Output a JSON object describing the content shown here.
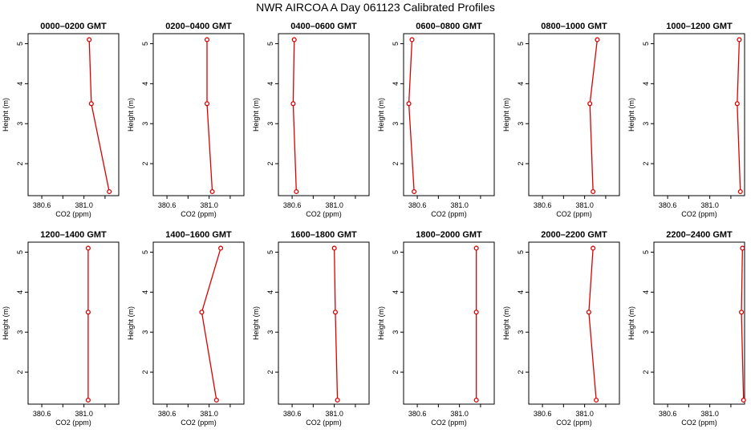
{
  "title": "NWR AIRCOA A  Day 061123  Calibrated Profiles",
  "chart_data": {
    "type": "line",
    "xlabel": "CO2 (ppm)",
    "ylabel": "Height (m)",
    "xlim": [
      380.47,
      381.33
    ],
    "ylim": [
      1.2,
      5.25
    ],
    "xticks": [
      380.6,
      381.0
    ],
    "xtick_labels": [
      "380.6",
      "381.0"
    ],
    "yticks": [
      2,
      3,
      4,
      5
    ],
    "ytick_labels": [
      "2",
      "3",
      "4",
      "5"
    ],
    "heights": [
      5.1,
      3.5,
      1.3
    ],
    "line_color": "#dd0000",
    "panels": [
      {
        "title": "0000–0200 GMT",
        "co2": [
          381.05,
          381.07,
          381.24
        ]
      },
      {
        "title": "0200–0400 GMT",
        "co2": [
          380.98,
          380.98,
          381.03
        ]
      },
      {
        "title": "0400–0600 GMT",
        "co2": [
          380.62,
          380.61,
          380.64
        ]
      },
      {
        "title": "0600–0800 GMT",
        "co2": [
          380.55,
          380.52,
          380.57
        ]
      },
      {
        "title": "0800–1000 GMT",
        "co2": [
          381.12,
          381.05,
          381.08
        ]
      },
      {
        "title": "1000–1200 GMT",
        "co2": [
          381.28,
          381.26,
          381.29
        ]
      },
      {
        "title": "1200–1400 GMT",
        "co2": [
          381.04,
          381.04,
          381.04
        ]
      },
      {
        "title": "1400–1600 GMT",
        "co2": [
          381.11,
          380.93,
          381.07
        ]
      },
      {
        "title": "1600–1800 GMT",
        "co2": [
          381.0,
          381.01,
          381.03
        ]
      },
      {
        "title": "1800–2000 GMT",
        "co2": [
          381.16,
          381.16,
          381.16
        ]
      },
      {
        "title": "2000–2200 GMT",
        "co2": [
          381.08,
          381.04,
          381.11
        ]
      },
      {
        "title": "2200–2400 GMT",
        "co2": [
          381.31,
          381.3,
          381.32
        ]
      }
    ]
  }
}
